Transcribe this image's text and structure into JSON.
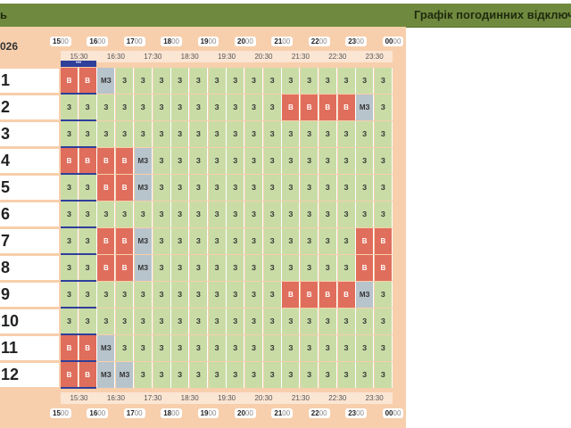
{
  "header": {
    "left_title": "ь",
    "right_title": "Графік погодинних відключ"
  },
  "date_label": "026",
  "hours": [
    "15",
    "16",
    "17",
    "18",
    "19",
    "20",
    "21",
    "22",
    "23",
    "00"
  ],
  "hours_suffix": "00",
  "half_hours": [
    "15:30",
    "16:30",
    "17:30",
    "18:30",
    "19:30",
    "20:30",
    "21:30",
    "22:30",
    "23:30"
  ],
  "now_marker": "•••",
  "legend_codes": {
    "z": "З",
    "v": "В",
    "m": "МЗ"
  },
  "colors": {
    "on": "#c9dca6",
    "off": "#e06e5c",
    "maybe": "#b8c4cc",
    "header": "#6f8a3e",
    "panel": "#f7cfac"
  },
  "rows": [
    {
      "label": "1",
      "cells": [
        "В",
        "В",
        "МЗ",
        "З",
        "З",
        "З",
        "З",
        "З",
        "З",
        "З",
        "З",
        "З",
        "З",
        "З",
        "З",
        "З",
        "З",
        "З"
      ]
    },
    {
      "label": "2",
      "cells": [
        "З",
        "З",
        "З",
        "З",
        "З",
        "З",
        "З",
        "З",
        "З",
        "З",
        "З",
        "З",
        "В",
        "В",
        "В",
        "В",
        "МЗ",
        "З"
      ]
    },
    {
      "label": "3",
      "cells": [
        "З",
        "З",
        "З",
        "З",
        "З",
        "З",
        "З",
        "З",
        "З",
        "З",
        "З",
        "З",
        "З",
        "З",
        "З",
        "З",
        "З",
        "З"
      ]
    },
    {
      "label": "4",
      "cells": [
        "В",
        "В",
        "В",
        "В",
        "МЗ",
        "З",
        "З",
        "З",
        "З",
        "З",
        "З",
        "З",
        "З",
        "З",
        "З",
        "З",
        "З",
        "З"
      ]
    },
    {
      "label": "5",
      "cells": [
        "З",
        "З",
        "В",
        "В",
        "МЗ",
        "З",
        "З",
        "З",
        "З",
        "З",
        "З",
        "З",
        "З",
        "З",
        "З",
        "З",
        "З",
        "З"
      ]
    },
    {
      "label": "6",
      "cells": [
        "З",
        "З",
        "З",
        "З",
        "З",
        "З",
        "З",
        "З",
        "З",
        "З",
        "З",
        "З",
        "З",
        "З",
        "З",
        "З",
        "З",
        "З"
      ]
    },
    {
      "label": "7",
      "cells": [
        "З",
        "З",
        "В",
        "В",
        "МЗ",
        "З",
        "З",
        "З",
        "З",
        "З",
        "З",
        "З",
        "З",
        "З",
        "З",
        "З",
        "В",
        "В"
      ]
    },
    {
      "label": "8",
      "cells": [
        "З",
        "З",
        "В",
        "В",
        "МЗ",
        "З",
        "З",
        "З",
        "З",
        "З",
        "З",
        "З",
        "З",
        "З",
        "З",
        "З",
        "В",
        "В"
      ]
    },
    {
      "label": "9",
      "cells": [
        "З",
        "З",
        "З",
        "З",
        "З",
        "З",
        "З",
        "З",
        "З",
        "З",
        "З",
        "З",
        "В",
        "В",
        "В",
        "В",
        "МЗ",
        "З"
      ]
    },
    {
      "label": "10",
      "cells": [
        "З",
        "З",
        "З",
        "З",
        "З",
        "З",
        "З",
        "З",
        "З",
        "З",
        "З",
        "З",
        "З",
        "З",
        "З",
        "З",
        "З",
        "З"
      ]
    },
    {
      "label": "11",
      "cells": [
        "В",
        "В",
        "МЗ",
        "З",
        "З",
        "З",
        "З",
        "З",
        "З",
        "З",
        "З",
        "З",
        "З",
        "З",
        "З",
        "З",
        "З",
        "З"
      ]
    },
    {
      "label": "12",
      "cells": [
        "В",
        "В",
        "МЗ",
        "МЗ",
        "З",
        "З",
        "З",
        "З",
        "З",
        "З",
        "З",
        "З",
        "З",
        "З",
        "З",
        "З",
        "З",
        "З"
      ]
    }
  ]
}
